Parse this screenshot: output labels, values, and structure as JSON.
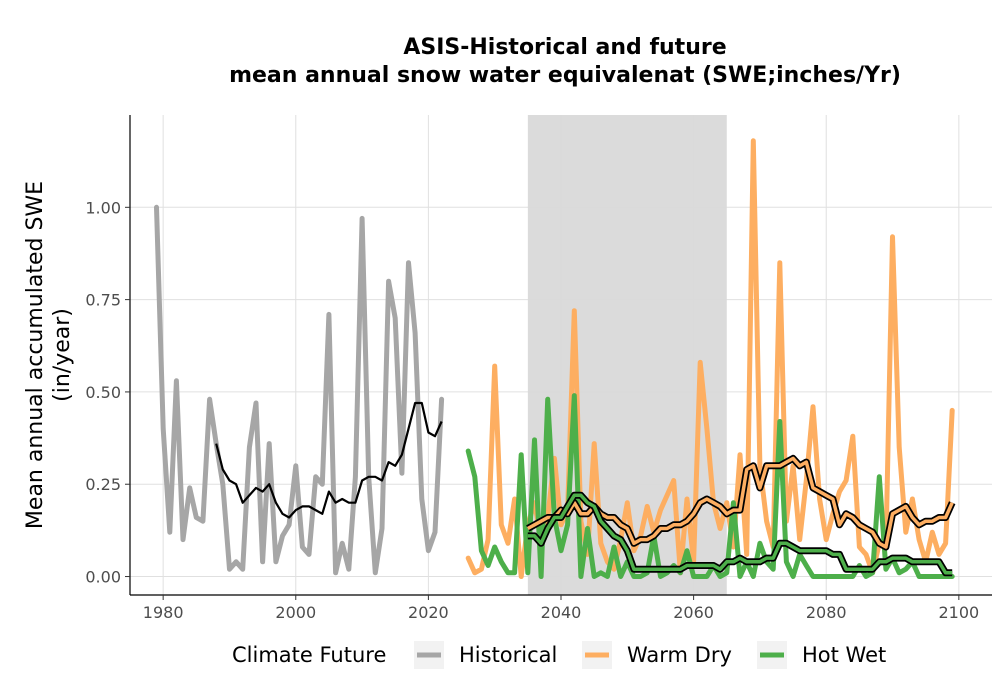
{
  "chart_data": {
    "type": "line",
    "title": "ASIS-Historical and future\nmean annual snow water equivalenat (SWE;inches/Yr)",
    "ylabel": "Mean annual accumulated SWE\n(in/year)",
    "xlabel": "",
    "xlim": [
      1975,
      2105
    ],
    "ylim": [
      -0.05,
      1.25
    ],
    "x_ticks": [
      1980,
      2000,
      2020,
      2040,
      2060,
      2080,
      2100
    ],
    "y_ticks": [
      0.0,
      0.25,
      0.5,
      0.75,
      1.0
    ],
    "y_tick_labels": [
      "0.00",
      "0.25",
      "0.50",
      "0.75",
      "1.00"
    ],
    "grid": true,
    "shaded_region": {
      "x_start": 2035,
      "x_end": 2065,
      "color": "#d9d9d9"
    },
    "legend": {
      "title": "Climate Future",
      "placement": "bottom",
      "entries": [
        {
          "label": "Historical",
          "color": "#a6a6a6"
        },
        {
          "label": "Warm Dry",
          "color": "#fdae61"
        },
        {
          "label": "Hot Wet",
          "color": "#4daf4a"
        }
      ]
    },
    "series": [
      {
        "name": "Historical",
        "color": "#a6a6a6",
        "x": [
          1979,
          1980,
          1981,
          1982,
          1983,
          1984,
          1985,
          1986,
          1987,
          1988,
          1989,
          1990,
          1991,
          1992,
          1993,
          1994,
          1995,
          1996,
          1997,
          1998,
          1999,
          2000,
          2001,
          2002,
          2003,
          2004,
          2005,
          2006,
          2007,
          2008,
          2009,
          2010,
          2011,
          2012,
          2013,
          2014,
          2015,
          2016,
          2017,
          2018,
          2019,
          2020,
          2021,
          2022
        ],
        "y": [
          1.0,
          0.4,
          0.12,
          0.53,
          0.1,
          0.24,
          0.16,
          0.15,
          0.48,
          0.36,
          0.25,
          0.02,
          0.04,
          0.02,
          0.35,
          0.47,
          0.04,
          0.36,
          0.04,
          0.11,
          0.14,
          0.3,
          0.08,
          0.06,
          0.27,
          0.25,
          0.71,
          0.01,
          0.09,
          0.02,
          0.27,
          0.97,
          0.27,
          0.01,
          0.13,
          0.8,
          0.7,
          0.28,
          0.85,
          0.66,
          0.21,
          0.07,
          0.12,
          0.48
        ]
      },
      {
        "name": "Historical-smooth",
        "color": "#000000",
        "x": [
          1988,
          1989,
          1990,
          1991,
          1992,
          1993,
          1994,
          1995,
          1996,
          1997,
          1998,
          1999,
          2000,
          2001,
          2002,
          2003,
          2004,
          2005,
          2006,
          2007,
          2008,
          2009,
          2010,
          2011,
          2012,
          2013,
          2014,
          2015,
          2016,
          2017,
          2018,
          2019,
          2020,
          2021,
          2022
        ],
        "y": [
          0.36,
          0.29,
          0.26,
          0.25,
          0.2,
          0.22,
          0.24,
          0.23,
          0.25,
          0.2,
          0.17,
          0.16,
          0.18,
          0.19,
          0.19,
          0.18,
          0.17,
          0.23,
          0.2,
          0.21,
          0.2,
          0.2,
          0.26,
          0.27,
          0.27,
          0.26,
          0.31,
          0.3,
          0.33,
          0.4,
          0.47,
          0.47,
          0.39,
          0.38,
          0.42
        ]
      },
      {
        "name": "Warm Dry",
        "color": "#fdae61",
        "x": [
          2026,
          2027,
          2028,
          2029,
          2030,
          2031,
          2032,
          2033,
          2034,
          2035,
          2036,
          2037,
          2038,
          2039,
          2040,
          2041,
          2042,
          2043,
          2044,
          2045,
          2046,
          2047,
          2048,
          2049,
          2050,
          2051,
          2052,
          2053,
          2054,
          2055,
          2056,
          2057,
          2058,
          2059,
          2060,
          2061,
          2062,
          2063,
          2064,
          2065,
          2066,
          2067,
          2068,
          2069,
          2070,
          2071,
          2072,
          2073,
          2074,
          2075,
          2076,
          2077,
          2078,
          2079,
          2080,
          2081,
          2082,
          2083,
          2084,
          2085,
          2086,
          2087,
          2088,
          2089,
          2090,
          2091,
          2092,
          2093,
          2094,
          2095,
          2096,
          2097,
          2098,
          2099
        ],
        "y": [
          0.05,
          0.01,
          0.02,
          0.1,
          0.57,
          0.14,
          0.09,
          0.21,
          0.0,
          0.14,
          0.2,
          0.1,
          0.16,
          0.32,
          0.14,
          0.18,
          0.72,
          0.15,
          0.06,
          0.36,
          0.09,
          0.04,
          0.02,
          0.1,
          0.2,
          0.07,
          0.11,
          0.19,
          0.12,
          0.18,
          0.22,
          0.26,
          0.01,
          0.21,
          0.04,
          0.58,
          0.4,
          0.2,
          0.13,
          0.2,
          0.08,
          0.33,
          0.06,
          1.18,
          0.3,
          0.15,
          0.08,
          0.85,
          0.15,
          0.3,
          0.1,
          0.26,
          0.46,
          0.21,
          0.1,
          0.17,
          0.23,
          0.26,
          0.38,
          0.08,
          0.06,
          0.01,
          0.09,
          0.08,
          0.92,
          0.35,
          0.12,
          0.21,
          0.1,
          0.04,
          0.12,
          0.06,
          0.09,
          0.45
        ]
      },
      {
        "name": "Warm Dry-smooth",
        "color": "#000000",
        "x": [
          2035,
          2036,
          2037,
          2038,
          2039,
          2040,
          2041,
          2042,
          2043,
          2044,
          2045,
          2046,
          2047,
          2048,
          2049,
          2050,
          2051,
          2052,
          2053,
          2054,
          2055,
          2056,
          2057,
          2058,
          2059,
          2060,
          2061,
          2062,
          2063,
          2064,
          2065,
          2066,
          2067,
          2068,
          2069,
          2070,
          2071,
          2072,
          2073,
          2074,
          2075,
          2076,
          2077,
          2078,
          2079,
          2080,
          2081,
          2082,
          2083,
          2084,
          2085,
          2086,
          2087,
          2088,
          2089,
          2090,
          2091,
          2092,
          2093,
          2094,
          2095,
          2096,
          2097,
          2098,
          2099
        ],
        "y": [
          0.13,
          0.14,
          0.15,
          0.16,
          0.16,
          0.18,
          0.17,
          0.2,
          0.17,
          0.17,
          0.19,
          0.17,
          0.16,
          0.16,
          0.14,
          0.13,
          0.09,
          0.1,
          0.1,
          0.11,
          0.13,
          0.13,
          0.14,
          0.14,
          0.15,
          0.17,
          0.2,
          0.21,
          0.2,
          0.19,
          0.17,
          0.18,
          0.18,
          0.29,
          0.3,
          0.24,
          0.3,
          0.3,
          0.3,
          0.31,
          0.32,
          0.3,
          0.31,
          0.24,
          0.23,
          0.22,
          0.21,
          0.14,
          0.17,
          0.16,
          0.14,
          0.13,
          0.12,
          0.09,
          0.08,
          0.17,
          0.18,
          0.19,
          0.16,
          0.14,
          0.15,
          0.15,
          0.16,
          0.16,
          0.2
        ]
      },
      {
        "name": "Hot Wet",
        "color": "#4daf4a",
        "x": [
          2026,
          2027,
          2028,
          2029,
          2030,
          2031,
          2032,
          2033,
          2034,
          2035,
          2036,
          2037,
          2038,
          2039,
          2040,
          2041,
          2042,
          2043,
          2044,
          2045,
          2046,
          2047,
          2048,
          2049,
          2050,
          2051,
          2052,
          2053,
          2054,
          2055,
          2056,
          2057,
          2058,
          2059,
          2060,
          2061,
          2062,
          2063,
          2064,
          2065,
          2066,
          2067,
          2068,
          2069,
          2070,
          2071,
          2072,
          2073,
          2074,
          2075,
          2076,
          2077,
          2078,
          2079,
          2080,
          2081,
          2082,
          2083,
          2084,
          2085,
          2086,
          2087,
          2088,
          2089,
          2090,
          2091,
          2092,
          2093,
          2094,
          2095,
          2096,
          2097,
          2098,
          2099
        ],
        "y": [
          0.34,
          0.27,
          0.07,
          0.03,
          0.08,
          0.04,
          0.01,
          0.01,
          0.33,
          0.01,
          0.37,
          0.0,
          0.48,
          0.16,
          0.07,
          0.14,
          0.49,
          0.0,
          0.13,
          0.0,
          0.01,
          0.0,
          0.08,
          0.0,
          0.04,
          0.0,
          0.0,
          0.01,
          0.11,
          0.0,
          0.01,
          0.03,
          0.01,
          0.07,
          0.0,
          0.0,
          0.0,
          0.03,
          0.0,
          0.01,
          0.2,
          0.0,
          0.04,
          0.0,
          0.09,
          0.04,
          0.02,
          0.42,
          0.04,
          0.0,
          0.06,
          0.03,
          0.0,
          0.0,
          0.0,
          0.0,
          0.0,
          0.0,
          0.0,
          0.03,
          0.0,
          0.01,
          0.27,
          0.02,
          0.05,
          0.01,
          0.02,
          0.04,
          0.0,
          0.0,
          0.0,
          0.0,
          0.0,
          0.0
        ]
      },
      {
        "name": "Hot Wet-smooth",
        "color": "#000000",
        "x": [
          2035,
          2036,
          2037,
          2038,
          2039,
          2040,
          2041,
          2042,
          2043,
          2044,
          2045,
          2046,
          2047,
          2048,
          2049,
          2050,
          2051,
          2052,
          2053,
          2054,
          2055,
          2056,
          2057,
          2058,
          2059,
          2060,
          2061,
          2062,
          2063,
          2064,
          2065,
          2066,
          2067,
          2068,
          2069,
          2070,
          2071,
          2072,
          2073,
          2074,
          2075,
          2076,
          2077,
          2078,
          2079,
          2080,
          2081,
          2082,
          2083,
          2084,
          2085,
          2086,
          2087,
          2088,
          2089,
          2090,
          2091,
          2092,
          2093,
          2094,
          2095,
          2096,
          2097,
          2098,
          2099
        ],
        "y": [
          0.11,
          0.11,
          0.09,
          0.13,
          0.16,
          0.16,
          0.19,
          0.22,
          0.22,
          0.2,
          0.19,
          0.15,
          0.13,
          0.11,
          0.1,
          0.07,
          0.02,
          0.02,
          0.02,
          0.02,
          0.02,
          0.02,
          0.02,
          0.02,
          0.03,
          0.03,
          0.03,
          0.03,
          0.03,
          0.02,
          0.04,
          0.04,
          0.05,
          0.04,
          0.04,
          0.04,
          0.05,
          0.05,
          0.09,
          0.09,
          0.08,
          0.07,
          0.07,
          0.07,
          0.07,
          0.07,
          0.06,
          0.06,
          0.02,
          0.02,
          0.02,
          0.02,
          0.02,
          0.04,
          0.04,
          0.05,
          0.05,
          0.05,
          0.04,
          0.04,
          0.04,
          0.04,
          0.04,
          0.01,
          0.01
        ]
      }
    ]
  }
}
